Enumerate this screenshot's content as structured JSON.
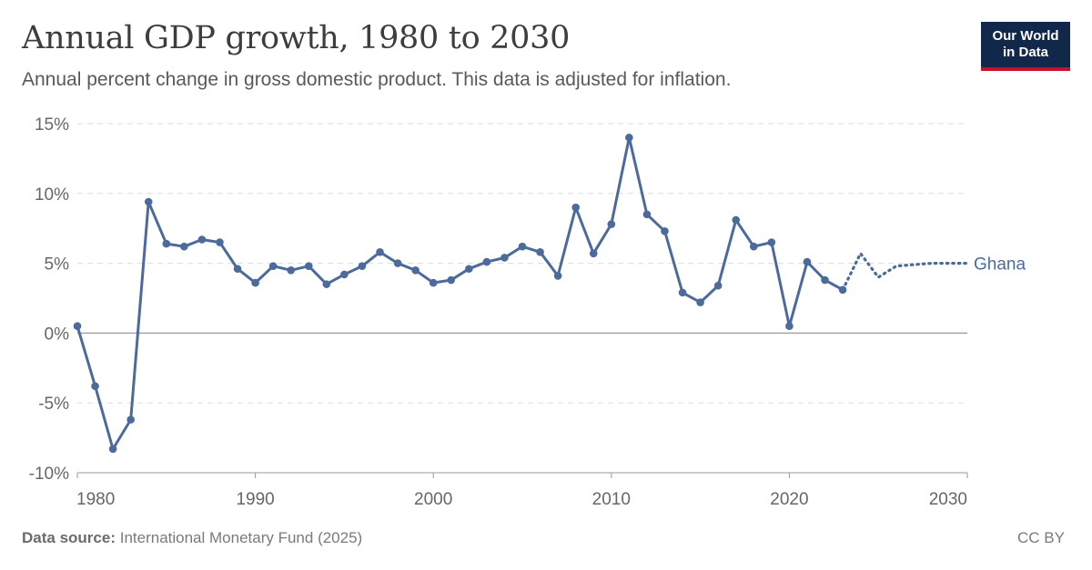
{
  "header": {
    "title": "Annual GDP growth, 1980 to 2030",
    "subtitle": "Annual percent change in gross domestic product. This data is adjusted for inflation."
  },
  "logo": {
    "line1": "Our World",
    "line2": "in Data",
    "bg_color": "#12284a",
    "accent_color": "#c8102e"
  },
  "footer": {
    "source_label": "Data source:",
    "source_text": "International Monetary Fund (2025)",
    "license": "CC BY"
  },
  "colors": {
    "series": "#4c6a9c",
    "grid": "#dddddd",
    "zero_line": "#9a9a9a"
  },
  "chart_data": {
    "type": "line",
    "title": "Annual GDP growth, 1980 to 2030",
    "xlabel": "",
    "ylabel": "",
    "xlim": [
      1980,
      2030
    ],
    "ylim": [
      -10,
      15
    ],
    "x_ticks": [
      1980,
      1990,
      2000,
      2010,
      2020,
      2030
    ],
    "y_ticks": [
      -10,
      -5,
      0,
      5,
      10,
      15
    ],
    "y_tick_labels": [
      "-10%",
      "-5%",
      "0%",
      "5%",
      "10%",
      "15%"
    ],
    "grid": "horizontal dashed",
    "legend": "inline label at line end",
    "series": [
      {
        "name": "Ghana",
        "x": [
          1980,
          1981,
          1982,
          1983,
          1984,
          1985,
          1986,
          1987,
          1988,
          1989,
          1990,
          1991,
          1992,
          1993,
          1994,
          1995,
          1996,
          1997,
          1998,
          1999,
          2000,
          2001,
          2002,
          2003,
          2004,
          2005,
          2006,
          2007,
          2008,
          2009,
          2010,
          2011,
          2012,
          2013,
          2014,
          2015,
          2016,
          2017,
          2018,
          2019,
          2020,
          2021,
          2022,
          2023
        ],
        "y": [
          0.5,
          -3.8,
          -8.3,
          -6.2,
          9.4,
          6.4,
          6.2,
          6.7,
          6.5,
          4.6,
          3.6,
          4.8,
          4.5,
          4.8,
          3.5,
          4.2,
          4.8,
          5.8,
          5.0,
          4.5,
          3.6,
          3.8,
          4.6,
          5.1,
          5.4,
          6.2,
          5.8,
          4.1,
          9.0,
          5.7,
          7.8,
          14.0,
          8.5,
          7.3,
          2.9,
          2.2,
          3.4,
          8.1,
          6.2,
          6.5,
          0.5,
          5.1,
          3.8,
          3.1
        ]
      },
      {
        "name": "Ghana (projection)",
        "dashed": true,
        "x": [
          2023,
          2024,
          2025,
          2026,
          2027,
          2028,
          2029,
          2030
        ],
        "y": [
          3.1,
          5.7,
          4.0,
          4.8,
          4.9,
          5.0,
          5.0,
          5.0
        ]
      }
    ]
  }
}
